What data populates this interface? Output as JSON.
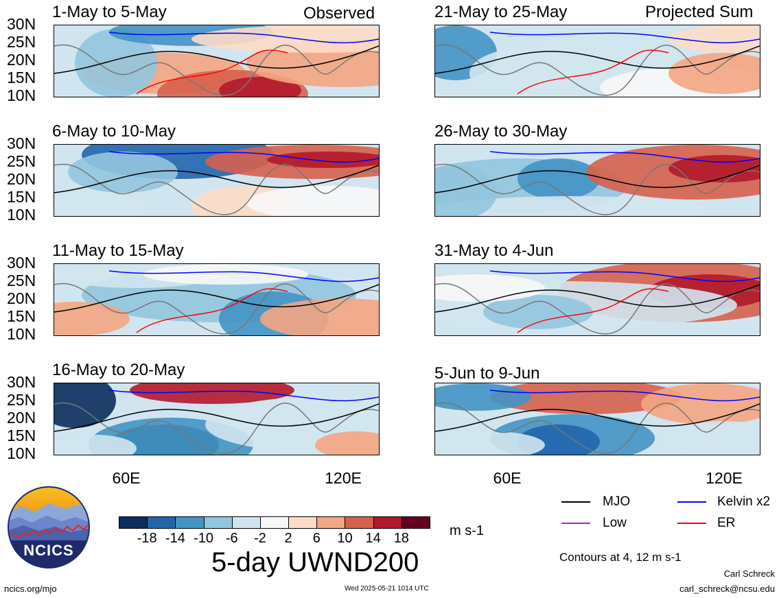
{
  "chart_data": {
    "type": "heatmap",
    "title": "5-day UWND200",
    "units": "m s-1",
    "y_ticks": [
      "30N",
      "25N",
      "20N",
      "15N",
      "10N"
    ],
    "x_ticks": [
      "60E",
      "120E"
    ],
    "left_column_label": "Observed",
    "right_column_label": "Projected Sum",
    "panels": [
      {
        "period": "1-May to 5-May"
      },
      {
        "period": "6-May to 10-May"
      },
      {
        "period": "11-May to 15-May"
      },
      {
        "period": "16-May to 20-May"
      },
      {
        "period": "21-May to 25-May"
      },
      {
        "period": "26-May to 30-May"
      },
      {
        "period": "31-May to 4-Jun"
      },
      {
        "period": "5-Jun to 9-Jun"
      }
    ],
    "colorbar": {
      "labels": [
        "-18",
        "-14",
        "-10",
        "-6",
        "-2",
        "2",
        "6",
        "10",
        "14",
        "18"
      ],
      "colors": [
        "#0b2e5c",
        "#2166ac",
        "#4393c3",
        "#92c5de",
        "#d1e5f0",
        "#f7f7f7",
        "#fddbc7",
        "#f4a582",
        "#d6604d",
        "#b2182b",
        "#67001f"
      ]
    },
    "legend": [
      {
        "name": "MJO",
        "color": "#000000"
      },
      {
        "name": "Kelvin x2",
        "color": "#0000ff"
      },
      {
        "name": "Low",
        "color": "#a020f0"
      },
      {
        "name": "ER",
        "color": "#ff0000"
      }
    ],
    "contour_note": "Contours at 4, 12 m s-1"
  },
  "footer": {
    "logo_text": "NCICS",
    "url": "ncics.org/mjo",
    "timestamp": "Wed 2025-05-21 1014 UTC",
    "author": "Carl Schreck",
    "email": "carl_schreck@ncsu.edu"
  }
}
